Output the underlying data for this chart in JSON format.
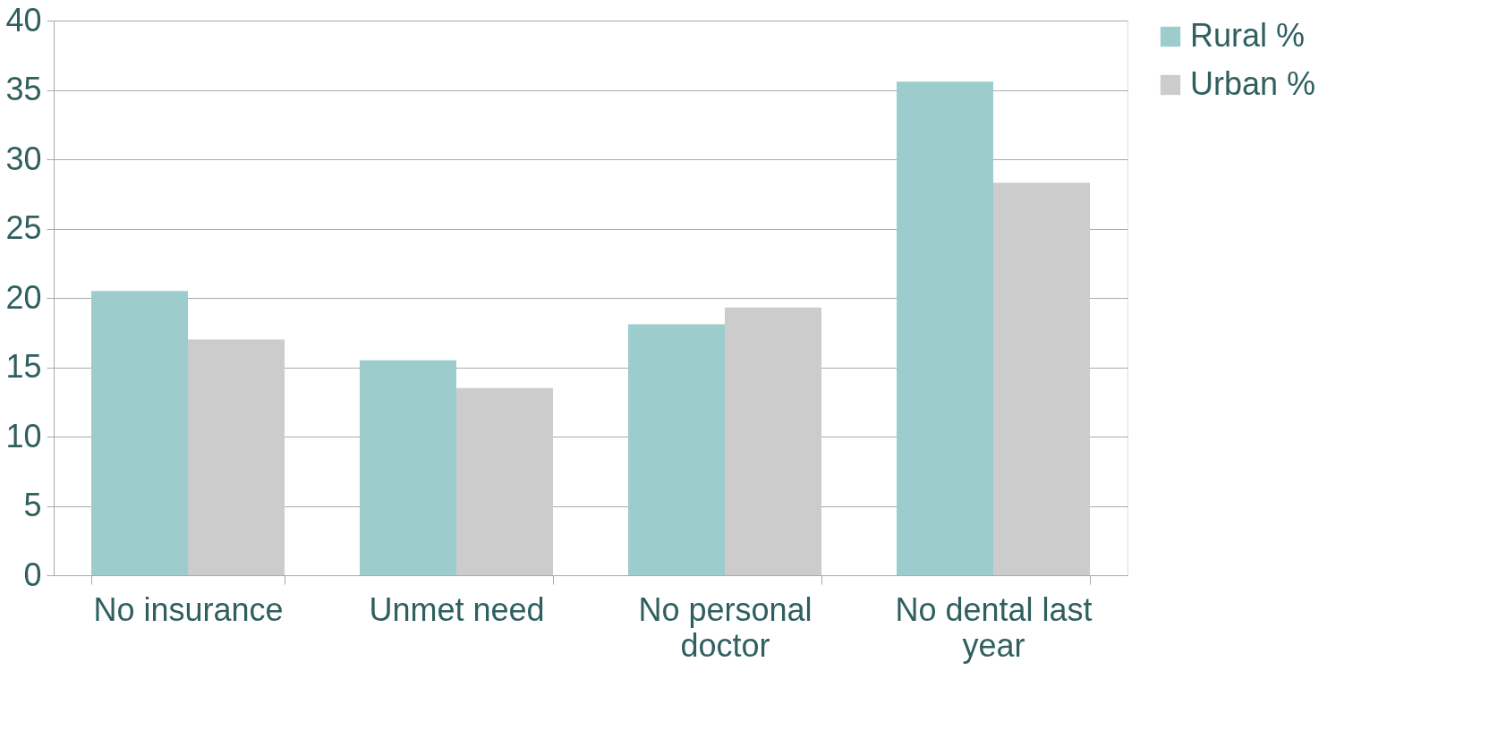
{
  "chart_data": {
    "type": "bar",
    "categories": [
      "No insurance",
      "Unmet need",
      "No personal doctor",
      "No dental last year"
    ],
    "series": [
      {
        "name": "Rural %",
        "color": "#9ccccc",
        "values": [
          20.5,
          15.5,
          18.1,
          35.6
        ]
      },
      {
        "name": "Urban %",
        "color": "#cccccc",
        "values": [
          17.0,
          13.5,
          19.3,
          28.3
        ]
      }
    ],
    "ylim": [
      0,
      40
    ],
    "yticks": [
      0,
      5,
      10,
      15,
      20,
      25,
      30,
      35,
      40
    ],
    "grid": "y",
    "legend": "right"
  }
}
